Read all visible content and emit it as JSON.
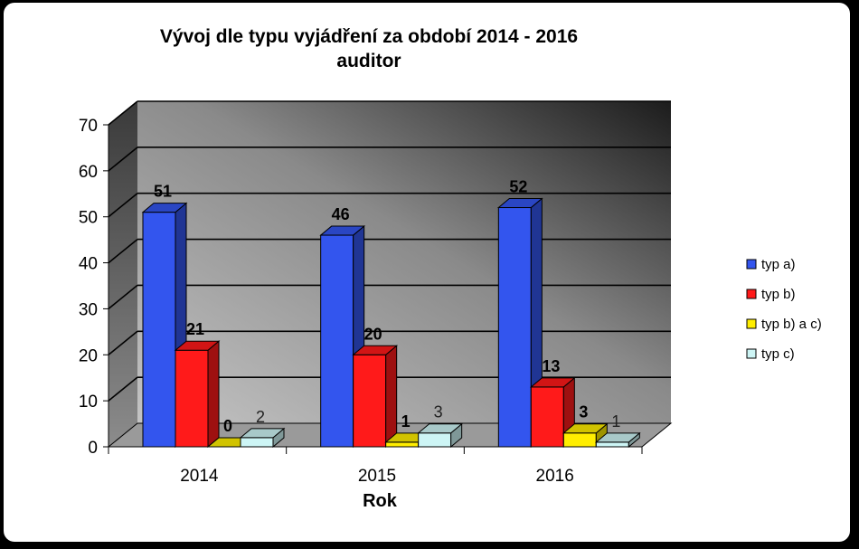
{
  "chart_data": {
    "type": "bar",
    "title_lines": [
      "Vývoj dle typu vyjádření za období 2014 - 2016",
      "auditor"
    ],
    "xlabel": "Rok",
    "ylabel": "",
    "categories": [
      "2014",
      "2015",
      "2016"
    ],
    "ylim": [
      0,
      70
    ],
    "yticks": [
      0,
      10,
      20,
      30,
      40,
      50,
      60,
      70
    ],
    "grid": true,
    "legend_position": "right",
    "series": [
      {
        "name": "typ a)",
        "values": [
          51,
          46,
          52
        ],
        "color": "#3355ee",
        "label_style": "bold"
      },
      {
        "name": "typ b)",
        "values": [
          21,
          20,
          13
        ],
        "color": "#ff1a1a",
        "label_style": "bold"
      },
      {
        "name": "typ b) a c)",
        "values": [
          0,
          1,
          3
        ],
        "color": "#ffee00",
        "label_style": "bold"
      },
      {
        "name": "typ c)",
        "values": [
          2,
          3,
          1
        ],
        "color": "#cdf5f5",
        "label_style": "plain"
      }
    ]
  }
}
